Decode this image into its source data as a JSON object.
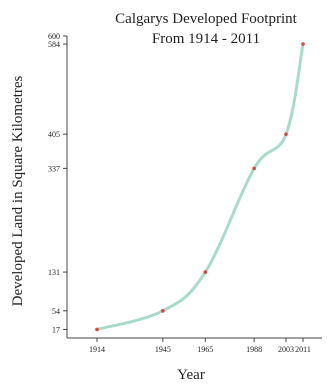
{
  "chart_data": {
    "type": "line",
    "title": [
      "Calgarys Developed Footprint",
      "From 1914 - 2011"
    ],
    "xlabel": "Year",
    "ylabel": "Developed Land in Square Kilometres",
    "x": [
      1914,
      1945,
      1965,
      1988,
      2003,
      2011
    ],
    "y": [
      17,
      54,
      131,
      337,
      405,
      584
    ],
    "xticks": [
      "1914",
      "1945",
      "1965",
      "1988",
      "2003",
      "2011"
    ],
    "yticks": [
      "17",
      "54",
      "131",
      "337",
      "405",
      "584",
      "600"
    ],
    "xlim": [
      1900,
      2020
    ],
    "ylim": [
      0,
      600
    ],
    "grid": false,
    "colors": {
      "line": "#a8dcc8",
      "marker": "#d9483b",
      "axis": "#444444"
    }
  }
}
